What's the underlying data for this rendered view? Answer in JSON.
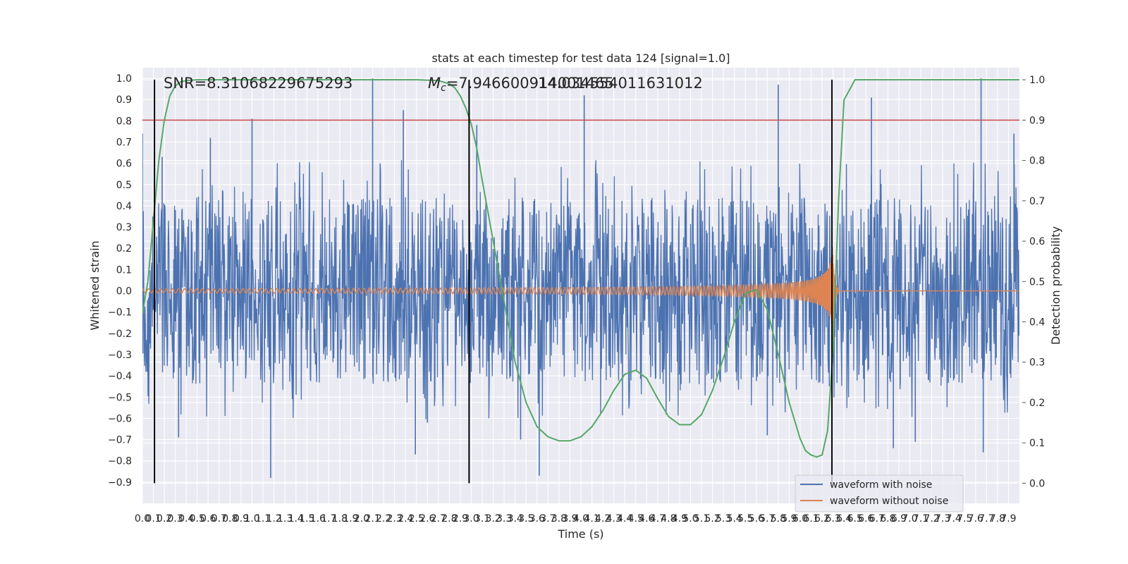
{
  "chart_data": {
    "type": "line",
    "title": "stats at each timestep for test data 124 [signal=1.0]",
    "xlabel": "Time (s)",
    "ylabel": "Whitened strain",
    "ylabel_right": "Detection probability",
    "xlim": [
      0.0,
      8.0
    ],
    "ylim": [
      -1.0,
      1.05
    ],
    "ylim_right": [
      -0.05,
      1.03
    ],
    "x_tick_labels": [
      "0.0",
      "0.1",
      "0.2",
      "0.3",
      "0.4",
      "0.5",
      "0.6",
      "0.7",
      "0.8",
      "0.9",
      "1.0",
      "1.1",
      "1.2",
      "1.3",
      "1.4",
      "1.5",
      "1.6",
      "1.7",
      "1.8",
      "1.9",
      "2.0",
      "2.1",
      "2.2",
      "2.3",
      "2.4",
      "2.5",
      "2.6",
      "2.7",
      "2.8",
      "2.9",
      "3.0",
      "3.1",
      "3.2",
      "3.3",
      "3.4",
      "3.5",
      "3.6",
      "3.7",
      "3.8",
      "3.9",
      "4.0",
      "4.1",
      "4.2",
      "4.3",
      "4.4",
      "4.5",
      "4.6",
      "4.7",
      "4.8",
      "4.9",
      "5.0",
      "5.1",
      "5.2",
      "5.3",
      "5.4",
      "5.5",
      "5.6",
      "5.7",
      "5.8",
      "5.9",
      "6.0",
      "6.1",
      "6.2",
      "6.3",
      "6.4",
      "6.5",
      "6.6",
      "6.7",
      "6.8",
      "6.9",
      "7.0",
      "7.1",
      "7.2",
      "7.3",
      "7.4",
      "7.5",
      "7.6",
      "7.7",
      "7.8",
      "7.9"
    ],
    "y_ticks": [
      -0.9,
      -0.8,
      -0.7,
      -0.6,
      -0.5,
      -0.4,
      -0.3,
      -0.2,
      -0.1,
      0.0,
      0.1,
      0.2,
      0.3,
      0.4,
      0.5,
      0.6,
      0.7,
      0.8,
      0.9,
      1.0
    ],
    "y_tick_labels": [
      "−0.9",
      "−0.8",
      "−0.7",
      "−0.6",
      "−0.5",
      "−0.4",
      "−0.3",
      "−0.2",
      "−0.1",
      "0.0",
      "0.1",
      "0.2",
      "0.3",
      "0.4",
      "0.5",
      "0.6",
      "0.7",
      "0.8",
      "0.9",
      "1.0"
    ],
    "y_right_ticks": [
      0.0,
      0.1,
      0.2,
      0.3,
      0.4,
      0.5,
      0.6,
      0.7,
      0.8,
      0.9,
      1.0
    ],
    "y_right_tick_labels": [
      "0.0",
      "0.1",
      "0.2",
      "0.3",
      "0.4",
      "0.5",
      "0.6",
      "0.7",
      "0.8",
      "0.9",
      "1.0"
    ],
    "grid": true,
    "legend_position": "lower-right",
    "threshold": {
      "axis": "right",
      "value": 0.9,
      "color": "#c44e52"
    },
    "vertical_lines": [
      0.11,
      2.98,
      6.29
    ],
    "annotations": [
      {
        "text": "SNR=8.31068229675293"
      },
      {
        "text": "M",
        "subscript": "c",
        "suffix": "=7.946600914001465"
      },
      {
        "text": "14.034554011631012"
      }
    ],
    "series": [
      {
        "name": "waveform with noise",
        "color": "#4c72b0",
        "axis": "left",
        "style": "noise",
        "sample_rate": 256,
        "core_amplitude": 0.22,
        "spikes": [
          {
            "x": 0.0,
            "y": 0.74
          },
          {
            "x": 0.18,
            "y": 0.63
          },
          {
            "x": 0.62,
            "y": 0.72
          },
          {
            "x": 1.0,
            "y": 0.81
          },
          {
            "x": 2.1,
            "y": 1.0
          },
          {
            "x": 2.38,
            "y": 0.85
          },
          {
            "x": 3.05,
            "y": 0.78
          },
          {
            "x": 4.03,
            "y": 0.92
          },
          {
            "x": 5.8,
            "y": 0.97
          },
          {
            "x": 6.65,
            "y": 0.91
          },
          {
            "x": 7.65,
            "y": 1.0
          },
          {
            "x": 7.95,
            "y": 0.74
          },
          {
            "x": 1.17,
            "y": -0.88
          },
          {
            "x": 2.49,
            "y": -0.77
          },
          {
            "x": 3.62,
            "y": -0.87
          },
          {
            "x": 3.45,
            "y": -0.7
          },
          {
            "x": 5.7,
            "y": -0.68
          },
          {
            "x": 6.85,
            "y": -0.74
          },
          {
            "x": 7.05,
            "y": -0.71
          },
          {
            "x": 7.67,
            "y": -0.76
          },
          {
            "x": 2.6,
            "y": -0.62
          },
          {
            "x": 0.33,
            "y": -0.69
          }
        ]
      },
      {
        "name": "waveform without noise",
        "color": "#dd8452",
        "axis": "left",
        "style": "chirp",
        "merger_time": 6.29,
        "start_amplitude": 0.01,
        "peak_amplitude": 0.33
      },
      {
        "name": "detection probability",
        "color": "#55a868",
        "axis": "right",
        "x": [
          0.0,
          0.05,
          0.1,
          0.15,
          0.2,
          0.25,
          0.3,
          0.35,
          0.4,
          0.5,
          0.7,
          1.0,
          1.5,
          2.0,
          2.5,
          2.7,
          2.8,
          2.85,
          2.9,
          2.95,
          3.0,
          3.05,
          3.1,
          3.2,
          3.3,
          3.4,
          3.5,
          3.6,
          3.7,
          3.8,
          3.9,
          4.0,
          4.1,
          4.2,
          4.3,
          4.4,
          4.5,
          4.6,
          4.7,
          4.8,
          4.9,
          5.0,
          5.1,
          5.2,
          5.3,
          5.4,
          5.5,
          5.6,
          5.7,
          5.8,
          5.9,
          6.0,
          6.05,
          6.1,
          6.15,
          6.2,
          6.25,
          6.3,
          6.35,
          6.4,
          6.5,
          6.7,
          7.0,
          7.5,
          8.0
        ],
        "y": [
          0.42,
          0.5,
          0.65,
          0.8,
          0.9,
          0.96,
          0.985,
          0.995,
          0.998,
          1.0,
          1.0,
          1.0,
          1.0,
          1.0,
          1.0,
          0.998,
          0.99,
          0.98,
          0.96,
          0.93,
          0.89,
          0.83,
          0.75,
          0.6,
          0.45,
          0.3,
          0.2,
          0.14,
          0.115,
          0.105,
          0.105,
          0.115,
          0.14,
          0.18,
          0.23,
          0.27,
          0.28,
          0.26,
          0.21,
          0.165,
          0.145,
          0.145,
          0.17,
          0.23,
          0.31,
          0.4,
          0.47,
          0.48,
          0.43,
          0.32,
          0.2,
          0.11,
          0.08,
          0.07,
          0.065,
          0.07,
          0.13,
          0.33,
          0.7,
          0.95,
          1.0,
          1.0,
          1.0,
          1.0,
          1.0
        ]
      }
    ]
  }
}
